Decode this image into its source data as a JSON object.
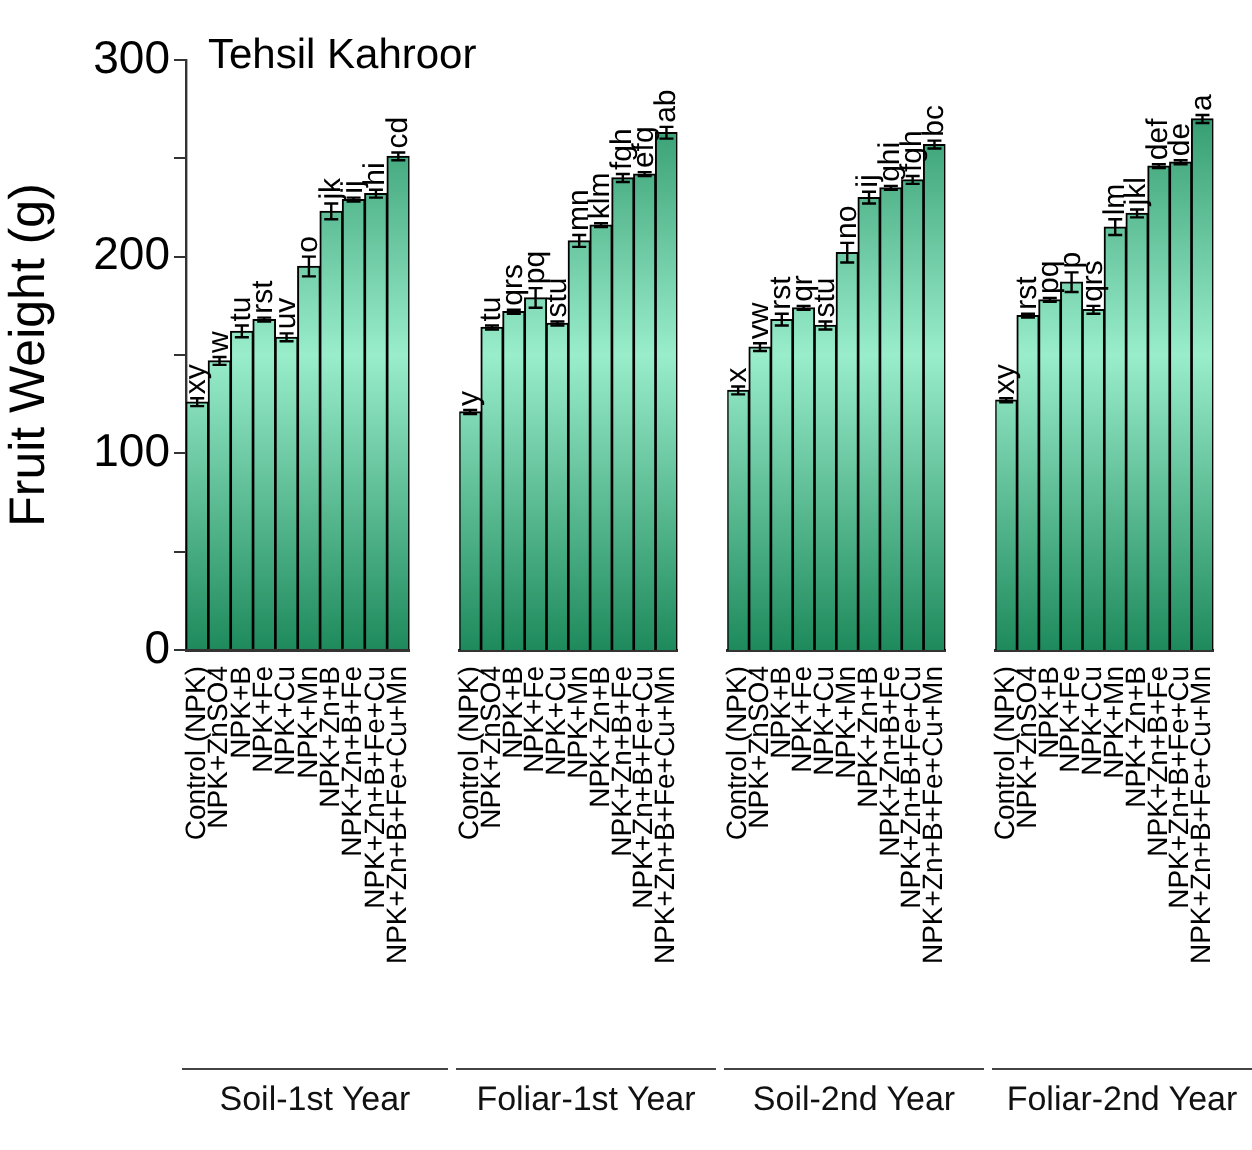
{
  "chart_data": [
    {
      "type": "bar",
      "title": "Tehsil Kahroor",
      "ylabel": "Fruit Weight (g)",
      "xlabel": "Soil-1st Year",
      "color": "#1e8a5c",
      "categories": [
        "Control (NPK)",
        "NPK+ZnSO4",
        "NPK+B",
        "NPK+Fe",
        "NPK+Cu",
        "NPK+Mn",
        "NPK+Zn+B",
        "NPK+Zn+B+Fe",
        "NPK+Zn+B+Fe+Cu",
        "NPK+Zn+B+Fe+Cu+Mn"
      ],
      "values": [
        126,
        147,
        162,
        168,
        159,
        195,
        223,
        229,
        232,
        251
      ],
      "errors": [
        2,
        2,
        3,
        1,
        2,
        5,
        4,
        1,
        2,
        2
      ],
      "value_labels": [
        "xy",
        "w",
        "tu",
        "rst",
        "uv",
        "o",
        "jk",
        "ij",
        "hi",
        "cd"
      ],
      "ylim": [
        0,
        300
      ],
      "yticks": [
        0,
        {
          "value": 50,
          "label": null
        },
        100,
        {
          "value": 150,
          "label": null
        },
        200,
        {
          "value": 250,
          "label": null
        },
        300
      ]
    },
    {
      "type": "bar",
      "xlabel": "Foliar-1st Year",
      "color": "#1e8a5c",
      "categories": [
        "Control (NPK)",
        "NPK+ZnSO4",
        "NPK+B",
        "NPK+Fe",
        "NPK+Cu",
        "NPK+Mn",
        "NPK+Zn+B",
        "NPK+Zn+B+Fe",
        "NPK+Zn+B+Fe+Cu",
        "NPK+Zn+B+Fe+Cu+Mn"
      ],
      "values": [
        121,
        164,
        172,
        179,
        166,
        208,
        216,
        240,
        242,
        263
      ],
      "errors": [
        1,
        1,
        1,
        5,
        1,
        3,
        1,
        2,
        1,
        3
      ],
      "value_labels": [
        "y",
        "tu",
        "qrs",
        "pq",
        "stu",
        "mn",
        "klm",
        "fgh",
        "efg",
        "ab"
      ],
      "ylim": [
        0,
        300
      ],
      "tick_labels": "x"
    },
    {
      "type": "bar",
      "xlabel": "Soil-2nd Year",
      "color": "#1e8a5c",
      "categories": [
        "Control (NPK)",
        "NPK+ZnSO4",
        "NPK+B",
        "NPK+Fe",
        "NPK+Cu",
        "NPK+Mn",
        "NPK+Zn+B",
        "NPK+Zn+B+Fe",
        "NPK+Zn+B+Fe+Cu",
        "NPK+Zn+B+Fe+Cu+Mn"
      ],
      "values": [
        132,
        154,
        168,
        174,
        165,
        202,
        230,
        235,
        239,
        257
      ],
      "errors": [
        2,
        2,
        3,
        1,
        2,
        5,
        3,
        1,
        2,
        2
      ],
      "value_labels": [
        "x",
        "vw",
        "rst",
        "qr",
        "stu",
        "no",
        "ij",
        "ghi",
        "fgh",
        "bc"
      ],
      "ylim": [
        0,
        300
      ],
      "tick_labels": "x"
    },
    {
      "type": "bar",
      "xlabel": "Foliar-2nd Year",
      "color": "#1e8a5c",
      "categories": [
        "Control (NPK)",
        "NPK+ZnSO4",
        "NPK+B",
        "NPK+Fe",
        "NPK+Cu",
        "NPK+Mn",
        "NPK+Zn+B",
        "NPK+Zn+B+Fe",
        "NPK+Zn+B+Fe+Cu",
        "NPK+Zn+B+Fe+Cu+Mn"
      ],
      "values": [
        127,
        170,
        178,
        187,
        173,
        215,
        222,
        246,
        248,
        270
      ],
      "errors": [
        1,
        1,
        1,
        5,
        2,
        4,
        2,
        1,
        1,
        2
      ],
      "value_labels": [
        "xy",
        "rst",
        "pq",
        "p",
        "qrs",
        "lm",
        "jkl",
        "def",
        "de",
        "a"
      ],
      "ylim": [
        0,
        300
      ],
      "tick_labels": "x"
    }
  ]
}
